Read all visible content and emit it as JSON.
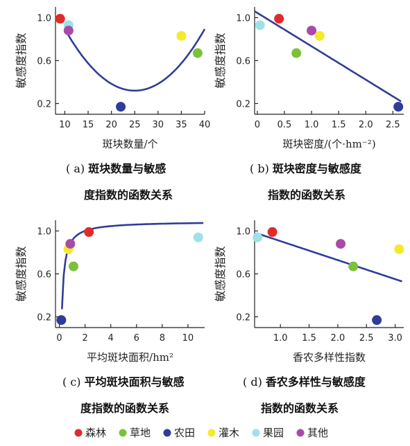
{
  "chart_data": [
    {
      "type": "scatter",
      "panel": "a",
      "ylabel": "敏感度指数",
      "xlabel": "斑块数量/个",
      "xlim": [
        8,
        40
      ],
      "ylim": [
        0.1,
        1.1
      ],
      "xticks": [
        10,
        15,
        20,
        25,
        30,
        35,
        40
      ],
      "yticks": [
        0.2,
        0.6,
        1.0
      ],
      "caption_prefix": "( a)",
      "caption_line1": "斑块数量与敏感",
      "caption_line2": "度指数的函数关系",
      "points": [
        {
          "category": "森林",
          "x": 9,
          "y": 0.99
        },
        {
          "category": "果园",
          "x": 10.8,
          "y": 0.93
        },
        {
          "category": "其他",
          "x": 10.8,
          "y": 0.88
        },
        {
          "category": "农田",
          "x": 22,
          "y": 0.17
        },
        {
          "category": "灌木",
          "x": 35,
          "y": 0.83
        },
        {
          "category": "草地",
          "x": 38.5,
          "y": 0.67
        }
      ],
      "fit": {
        "kind": "quadratic",
        "x": [
          10,
          40
        ],
        "vertex_x": 25,
        "vertex_y": 0.32,
        "a": 0.00255
      }
    },
    {
      "type": "scatter",
      "panel": "b",
      "ylabel": "敏感度指数",
      "xlabel": "斑块密度/(个·hm⁻²)",
      "xlim": [
        -0.05,
        2.7
      ],
      "ylim": [
        0.1,
        1.1
      ],
      "xticks": [
        0,
        0.5,
        1.0,
        1.5,
        2.0,
        2.5
      ],
      "xtick_labels": [
        "0",
        "0.5",
        "1.0",
        "1.5",
        "2.0",
        "2.5"
      ],
      "yticks": [
        0.2,
        0.6,
        1.0
      ],
      "caption_prefix": "( b)",
      "caption_line1": "斑块密度与敏感度",
      "caption_line2": "指数的函数关系",
      "points": [
        {
          "category": "果园",
          "x": 0.05,
          "y": 0.93
        },
        {
          "category": "森林",
          "x": 0.4,
          "y": 0.99
        },
        {
          "category": "草地",
          "x": 0.72,
          "y": 0.67
        },
        {
          "category": "其他",
          "x": 1.0,
          "y": 0.88
        },
        {
          "category": "灌木",
          "x": 1.15,
          "y": 0.83
        },
        {
          "category": "农田",
          "x": 2.6,
          "y": 0.17
        }
      ],
      "fit": {
        "kind": "linear",
        "x": [
          -0.05,
          2.65
        ],
        "y": [
          1.06,
          0.22
        ]
      }
    },
    {
      "type": "scatter",
      "panel": "c",
      "ylabel": "敏感度指数",
      "xlabel": "平均斑块面积/hm²",
      "xlim": [
        -0.3,
        11.3
      ],
      "ylim": [
        0.1,
        1.1
      ],
      "xticks": [
        0,
        2,
        4,
        6,
        8,
        10
      ],
      "yticks": [
        0.2,
        0.6,
        1.0
      ],
      "caption_prefix": "( c)",
      "caption_line1": "平均斑块面积与敏感",
      "caption_line2": "度指数的函数关系",
      "points": [
        {
          "category": "农田",
          "x": 0.15,
          "y": 0.17
        },
        {
          "category": "灌木",
          "x": 0.7,
          "y": 0.83
        },
        {
          "category": "其他",
          "x": 0.85,
          "y": 0.88
        },
        {
          "category": "草地",
          "x": 1.1,
          "y": 0.67
        },
        {
          "category": "森林",
          "x": 2.3,
          "y": 0.99
        },
        {
          "category": "果园",
          "x": 10.8,
          "y": 0.94
        }
      ],
      "fit": {
        "kind": "saturating",
        "x": [
          0.2,
          11.2
        ],
        "asymptote": 1.09,
        "k": 0.18
      }
    },
    {
      "type": "scatter",
      "panel": "d",
      "ylabel": "敏感度指数",
      "xlabel": "香农多样性指数",
      "xlim": [
        0.55,
        3.15
      ],
      "ylim": [
        0.1,
        1.1
      ],
      "xticks": [
        1.0,
        1.5,
        2.0,
        2.5,
        3.0
      ],
      "xtick_labels": [
        "1.0",
        "1.5",
        "2.0",
        "2.5",
        "3.0"
      ],
      "yticks": [
        0.2,
        0.6,
        1.0
      ],
      "caption_prefix": "( d)",
      "caption_line1": "香农多样性与敏感度",
      "caption_line2": "指数的函数关系",
      "points": [
        {
          "category": "果园",
          "x": 0.6,
          "y": 0.94
        },
        {
          "category": "森林",
          "x": 0.86,
          "y": 0.99
        },
        {
          "category": "其他",
          "x": 2.05,
          "y": 0.88
        },
        {
          "category": "草地",
          "x": 2.27,
          "y": 0.67
        },
        {
          "category": "农田",
          "x": 2.68,
          "y": 0.17
        },
        {
          "category": "灌木",
          "x": 3.07,
          "y": 0.83
        }
      ],
      "fit": {
        "kind": "linear",
        "x": [
          0.58,
          3.12
        ],
        "y": [
          0.98,
          0.53
        ]
      }
    }
  ],
  "legend": [
    {
      "name": "森林",
      "color": "#e12b2b"
    },
    {
      "name": "草地",
      "color": "#7dc13b"
    },
    {
      "name": "农田",
      "color": "#2e3d9a"
    },
    {
      "name": "灌木",
      "color": "#f4ea2a"
    },
    {
      "name": "果园",
      "color": "#9fe1ea"
    },
    {
      "name": "其他",
      "color": "#a84aa8"
    }
  ],
  "colors": {
    "fit_line": "#2f3c98",
    "axis": "#222222"
  }
}
